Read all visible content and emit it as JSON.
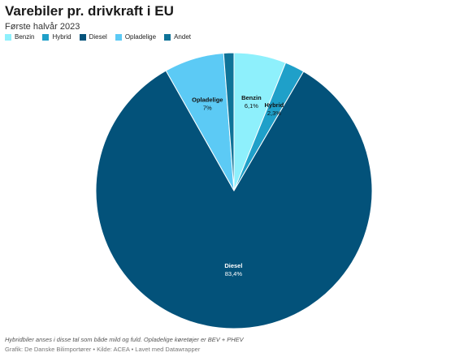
{
  "title": "Varebiler pr. drivkraft i EU",
  "subtitle": "Første halvår 2023",
  "note": "Hybridbiler anses i disse tal som både mild og fuld. Opladelige køretøjer er BEV + PHEV",
  "credit": "Grafik: De Danske Bilimportører • Kilde: ACEA • Lavet med Datawrapper",
  "chart_data": {
    "type": "pie",
    "title": "Varebiler pr. drivkraft i EU",
    "subtitle": "Første halvår 2023",
    "legend_position": "top-left",
    "slices": [
      {
        "name": "Benzin",
        "value": 6.1,
        "label": "6,1%",
        "color": "#8ef0fc",
        "text_color": "#111111",
        "show_label": true
      },
      {
        "name": "Hybrid",
        "value": 2.3,
        "label": "2,3%",
        "color": "#1fa0c9",
        "text_color": "#111111",
        "show_label": true
      },
      {
        "name": "Diesel",
        "value": 83.4,
        "label": "83,4%",
        "color": "#03527a",
        "text_color": "#ffffff",
        "show_label": true
      },
      {
        "name": "Opladelige",
        "value": 7,
        "label": "7%",
        "color": "#5ccaf5",
        "text_color": "#111111",
        "show_label": true
      },
      {
        "name": "Andet",
        "value": 1.2,
        "label": "",
        "color": "#0e7398",
        "text_color": "#ffffff",
        "show_label": false
      }
    ]
  }
}
